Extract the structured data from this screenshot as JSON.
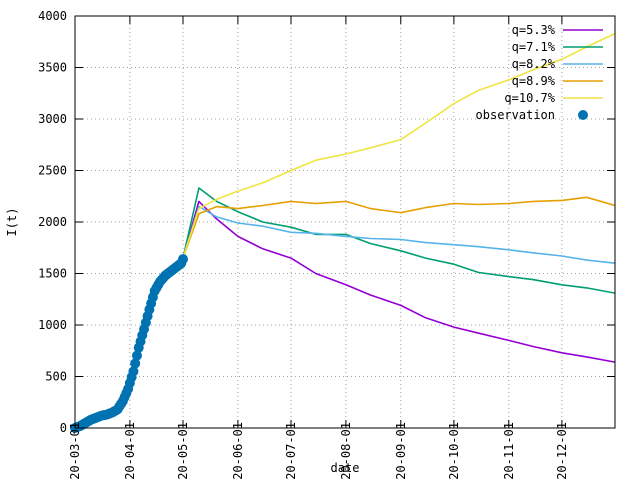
{
  "chart_data": {
    "type": "line",
    "xlabel": "date",
    "ylabel": "I(t)",
    "xlim": [
      "2020-03-01",
      "2020-12-31"
    ],
    "ylim": [
      0,
      4000
    ],
    "y_ticks": [
      0,
      500,
      1000,
      1500,
      2000,
      2500,
      3000,
      3500,
      4000
    ],
    "x_ticks": [
      "2020-03-01",
      "2020-04-01",
      "2020-05-01",
      "2020-06-01",
      "2020-07-01",
      "2020-08-01",
      "2020-09-01",
      "2020-10-01",
      "2020-11-01",
      "2020-12-01"
    ],
    "grid": true,
    "legend_position": "top-right",
    "series": [
      {
        "name": "q=5.3%",
        "color": "#9400d3",
        "x": [
          "2020-05-01",
          "2020-05-10",
          "2020-05-20",
          "2020-06-01",
          "2020-06-15",
          "2020-07-01",
          "2020-07-15",
          "2020-08-01",
          "2020-08-15",
          "2020-09-01",
          "2020-09-15",
          "2020-10-01",
          "2020-10-15",
          "2020-11-01",
          "2020-11-15",
          "2020-12-01",
          "2020-12-15",
          "2020-12-31"
        ],
        "y": [
          1650,
          2200,
          2030,
          1860,
          1740,
          1650,
          1500,
          1390,
          1290,
          1190,
          1070,
          980,
          920,
          850,
          790,
          730,
          690,
          640
        ]
      },
      {
        "name": "q=7.1%",
        "color": "#009e73",
        "x": [
          "2020-05-01",
          "2020-05-10",
          "2020-05-20",
          "2020-06-01",
          "2020-06-15",
          "2020-07-01",
          "2020-07-15",
          "2020-08-01",
          "2020-08-15",
          "2020-09-01",
          "2020-09-15",
          "2020-10-01",
          "2020-10-15",
          "2020-11-01",
          "2020-11-15",
          "2020-12-01",
          "2020-12-15",
          "2020-12-31"
        ],
        "y": [
          1650,
          2330,
          2200,
          2100,
          2000,
          1950,
          1880,
          1880,
          1790,
          1720,
          1650,
          1590,
          1510,
          1470,
          1440,
          1390,
          1360,
          1310
        ]
      },
      {
        "name": "q=8.2%",
        "color": "#56b4e9",
        "x": [
          "2020-05-01",
          "2020-05-10",
          "2020-05-20",
          "2020-06-01",
          "2020-06-15",
          "2020-07-01",
          "2020-07-15",
          "2020-08-01",
          "2020-08-15",
          "2020-09-01",
          "2020-09-15",
          "2020-10-01",
          "2020-10-15",
          "2020-11-01",
          "2020-11-15",
          "2020-12-01",
          "2020-12-15",
          "2020-12-31"
        ],
        "y": [
          1650,
          2150,
          2050,
          1990,
          1960,
          1900,
          1890,
          1860,
          1840,
          1830,
          1800,
          1780,
          1760,
          1730,
          1700,
          1670,
          1630,
          1600
        ]
      },
      {
        "name": "q=8.9%",
        "color": "#e69f00",
        "x": [
          "2020-05-01",
          "2020-05-10",
          "2020-05-20",
          "2020-06-01",
          "2020-06-15",
          "2020-07-01",
          "2020-07-15",
          "2020-08-01",
          "2020-08-15",
          "2020-09-01",
          "2020-09-15",
          "2020-10-01",
          "2020-10-15",
          "2020-11-01",
          "2020-11-15",
          "2020-12-01",
          "2020-12-15",
          "2020-12-31"
        ],
        "y": [
          1650,
          2080,
          2150,
          2130,
          2160,
          2200,
          2180,
          2200,
          2130,
          2090,
          2140,
          2180,
          2170,
          2180,
          2200,
          2210,
          2240,
          2160
        ]
      },
      {
        "name": "q=10.7%",
        "color": "#f0e442",
        "x": [
          "2020-05-01",
          "2020-05-10",
          "2020-05-20",
          "2020-06-01",
          "2020-06-15",
          "2020-07-01",
          "2020-07-15",
          "2020-08-01",
          "2020-08-15",
          "2020-09-01",
          "2020-09-15",
          "2020-10-01",
          "2020-10-15",
          "2020-11-01",
          "2020-11-15",
          "2020-12-01",
          "2020-12-15",
          "2020-12-31"
        ],
        "y": [
          1650,
          2130,
          2220,
          2300,
          2380,
          2500,
          2600,
          2660,
          2720,
          2800,
          2960,
          3150,
          3280,
          3380,
          3480,
          3580,
          3700,
          3830
        ]
      },
      {
        "name": "observation",
        "color": "#0072b2",
        "marker": "circle",
        "x": [
          "2020-03-01",
          "2020-03-04",
          "2020-03-07",
          "2020-03-10",
          "2020-03-13",
          "2020-03-16",
          "2020-03-19",
          "2020-03-22",
          "2020-03-25",
          "2020-03-28",
          "2020-03-31",
          "2020-04-03",
          "2020-04-06",
          "2020-04-09",
          "2020-04-12",
          "2020-04-15",
          "2020-04-18",
          "2020-04-21",
          "2020-04-24",
          "2020-04-27",
          "2020-04-30",
          "2020-05-01"
        ],
        "y": [
          0,
          20,
          50,
          80,
          100,
          120,
          130,
          150,
          180,
          260,
          380,
          550,
          780,
          960,
          1150,
          1330,
          1420,
          1480,
          1520,
          1560,
          1600,
          1640
        ]
      }
    ]
  }
}
